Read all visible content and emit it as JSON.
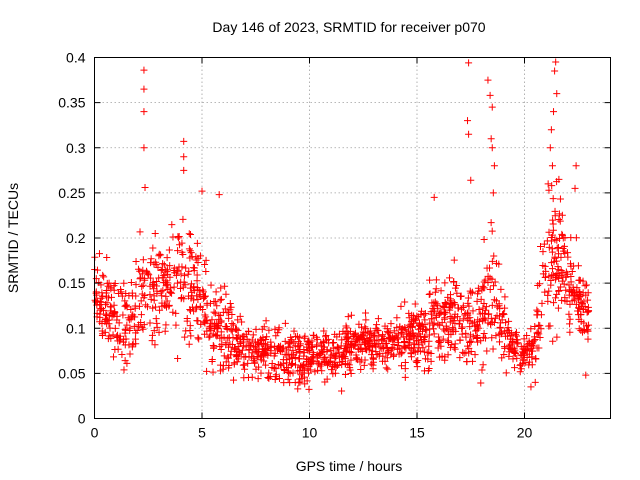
{
  "chart_data": {
    "type": "scatter",
    "title": "Day 146 of 2023, SRMTID for receiver p070",
    "xlabel": "GPS time / hours",
    "ylabel": "SRMTID / TECUs",
    "xlim": [
      0,
      24
    ],
    "ylim": [
      0,
      0.4
    ],
    "grid": true,
    "marker": "+",
    "xticks": [
      0,
      5,
      10,
      15,
      20
    ],
    "xtick_labels": [
      "0",
      "5",
      "10",
      "15",
      "20"
    ],
    "yticks": [
      0,
      0.05,
      0.1,
      0.15,
      0.2,
      0.25,
      0.3,
      0.35,
      0.4
    ],
    "ytick_labels": [
      "0",
      "0.05",
      "0.1",
      "0.15",
      "0.2",
      "0.25",
      "0.3",
      "0.35",
      "0.4"
    ],
    "series": [
      {
        "name": "SRMTID",
        "color": "#ff0000",
        "envelope": {
          "x": [
            0,
            0.5,
            1,
            1.5,
            2,
            2.5,
            3,
            3.5,
            4,
            4.5,
            5,
            5.5,
            6,
            6.5,
            7,
            7.5,
            8,
            8.5,
            9,
            9.5,
            10,
            10.5,
            11,
            11.5,
            12,
            12.5,
            13,
            13.5,
            14,
            14.5,
            15,
            15.5,
            16,
            16.5,
            17,
            17.5,
            18,
            18.5,
            19,
            19.5,
            20,
            20.5,
            21,
            21.5,
            22,
            22.5,
            23
          ],
          "median": [
            0.145,
            0.13,
            0.11,
            0.1,
            0.13,
            0.15,
            0.14,
            0.155,
            0.16,
            0.15,
            0.13,
            0.105,
            0.1,
            0.085,
            0.075,
            0.072,
            0.074,
            0.072,
            0.068,
            0.066,
            0.068,
            0.07,
            0.065,
            0.072,
            0.08,
            0.085,
            0.082,
            0.085,
            0.088,
            0.09,
            0.095,
            0.1,
            0.11,
            0.115,
            0.11,
            0.1,
            0.12,
            0.15,
            0.1,
            0.075,
            0.07,
            0.085,
            0.16,
            0.18,
            0.15,
            0.13,
            0.11
          ],
          "spread": [
            0.03,
            0.04,
            0.045,
            0.04,
            0.05,
            0.055,
            0.05,
            0.055,
            0.06,
            0.055,
            0.05,
            0.045,
            0.04,
            0.035,
            0.025,
            0.025,
            0.028,
            0.03,
            0.028,
            0.025,
            0.025,
            0.024,
            0.022,
            0.025,
            0.025,
            0.025,
            0.025,
            0.025,
            0.025,
            0.028,
            0.032,
            0.04,
            0.045,
            0.045,
            0.045,
            0.045,
            0.06,
            0.08,
            0.04,
            0.02,
            0.02,
            0.025,
            0.06,
            0.07,
            0.05,
            0.04,
            0.035
          ]
        },
        "peaks": [
          {
            "x": 2.3,
            "y": 0.386
          },
          {
            "x": 2.3,
            "y": 0.365
          },
          {
            "x": 2.3,
            "y": 0.34
          },
          {
            "x": 2.3,
            "y": 0.3
          },
          {
            "x": 2.35,
            "y": 0.256
          },
          {
            "x": 4.15,
            "y": 0.307
          },
          {
            "x": 4.15,
            "y": 0.29
          },
          {
            "x": 4.15,
            "y": 0.275
          },
          {
            "x": 5.0,
            "y": 0.252
          },
          {
            "x": 5.8,
            "y": 0.248
          },
          {
            "x": 15.8,
            "y": 0.245
          },
          {
            "x": 17.4,
            "y": 0.394
          },
          {
            "x": 17.35,
            "y": 0.33
          },
          {
            "x": 17.4,
            "y": 0.315
          },
          {
            "x": 17.5,
            "y": 0.264
          },
          {
            "x": 18.3,
            "y": 0.375
          },
          {
            "x": 18.4,
            "y": 0.358
          },
          {
            "x": 18.5,
            "y": 0.345
          },
          {
            "x": 18.45,
            "y": 0.31
          },
          {
            "x": 18.5,
            "y": 0.3
          },
          {
            "x": 18.6,
            "y": 0.28
          },
          {
            "x": 18.55,
            "y": 0.25
          },
          {
            "x": 21.45,
            "y": 0.395
          },
          {
            "x": 21.4,
            "y": 0.385
          },
          {
            "x": 21.5,
            "y": 0.36
          },
          {
            "x": 21.35,
            "y": 0.34
          },
          {
            "x": 21.25,
            "y": 0.32
          },
          {
            "x": 21.2,
            "y": 0.3
          },
          {
            "x": 21.3,
            "y": 0.28
          },
          {
            "x": 21.6,
            "y": 0.265
          },
          {
            "x": 22.4,
            "y": 0.28
          },
          {
            "x": 22.35,
            "y": 0.255
          },
          {
            "x": 21.1,
            "y": 0.26
          },
          {
            "x": 20.5,
            "y": 0.04
          },
          {
            "x": 20.3,
            "y": 0.035
          },
          {
            "x": 22.85,
            "y": 0.048
          }
        ]
      }
    ]
  }
}
